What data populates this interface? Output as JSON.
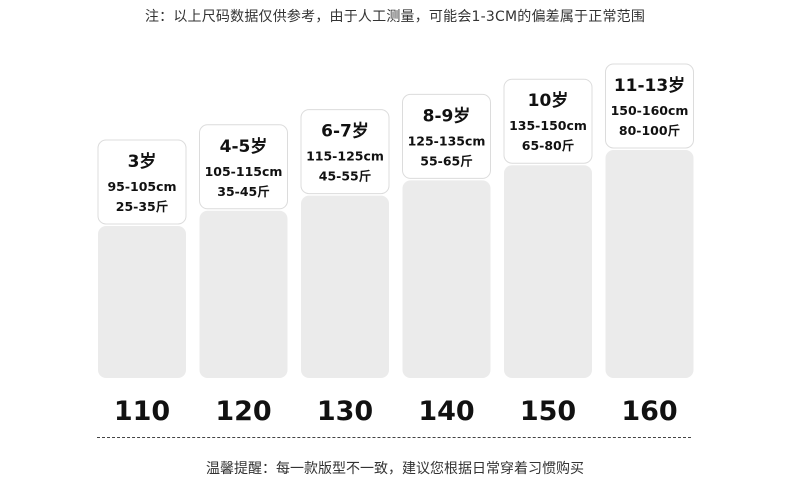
{
  "note": "注：以上尺码数据仅供参考，由于人工测量，可能会1-3CM的偏差属于正常范围",
  "tip": "温馨提醒：每一款版型不一致，建议您根据日常穿着习惯购买",
  "colors": {
    "bar": "#ebebeb",
    "card_border": "#dcdcdc",
    "text": "#111111"
  },
  "chart_data": {
    "type": "bar",
    "categories": [
      "110",
      "120",
      "130",
      "140",
      "150",
      "160"
    ],
    "values": [
      110,
      120,
      130,
      140,
      150,
      160
    ],
    "ylim": [
      100,
      165
    ],
    "grid": false,
    "legend": "none",
    "labels": [
      {
        "age": "3岁",
        "height": "95-105cm",
        "weight": "25-35斤"
      },
      {
        "age": "4-5岁",
        "height": "105-115cm",
        "weight": "35-45斤"
      },
      {
        "age": "6-7岁",
        "height": "115-125cm",
        "weight": "45-55斤"
      },
      {
        "age": "8-9岁",
        "height": "125-135cm",
        "weight": "55-65斤"
      },
      {
        "age": "10岁",
        "height": "135-150cm",
        "weight": "65-80斤"
      },
      {
        "age": "11-13岁",
        "height": "150-160cm",
        "weight": "80-100斤"
      }
    ]
  }
}
